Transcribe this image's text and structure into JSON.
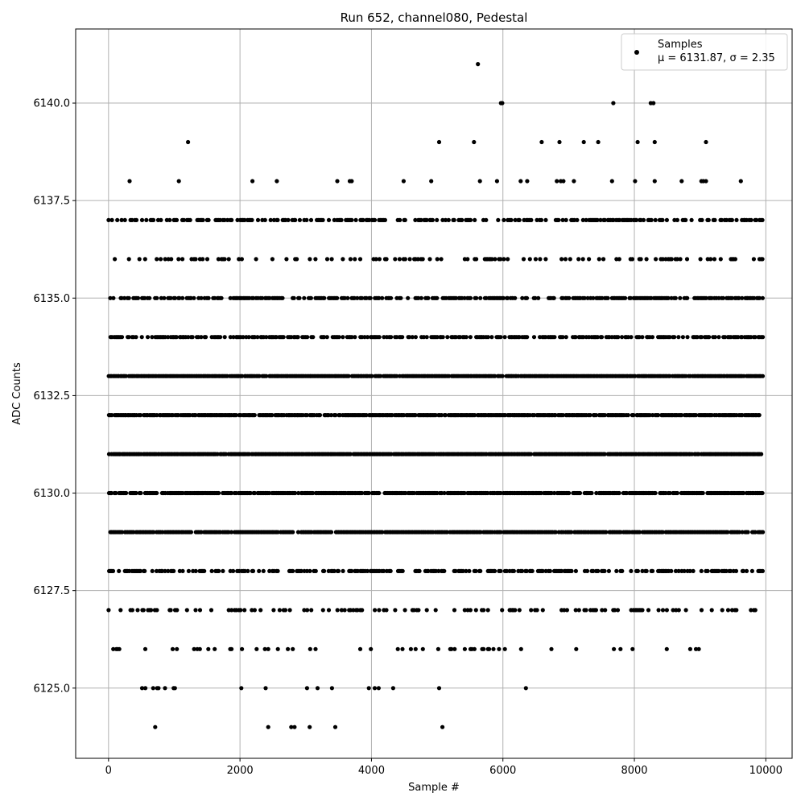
{
  "chart_data": {
    "type": "scatter",
    "title": "Run 652, channel080, Pedestal",
    "xlabel": "Sample #",
    "ylabel": "ADC Counts",
    "xlim": [
      -500,
      10400
    ],
    "ylim": [
      6123.2,
      6141.9
    ],
    "xticks": [
      0,
      2000,
      4000,
      6000,
      8000,
      10000
    ],
    "yticks": [
      6125.0,
      6127.5,
      6130.0,
      6132.5,
      6135.0,
      6137.5,
      6140.0
    ],
    "xtick_labels": [
      "0",
      "2000",
      "4000",
      "6000",
      "8000",
      "10000"
    ],
    "ytick_labels": [
      "6125.0",
      "6127.5",
      "6130.0",
      "6132.5",
      "6135.0",
      "6137.5",
      "6140.0"
    ],
    "grid": true,
    "legend": {
      "placement": "top-right",
      "series_label": "Samples",
      "stats_label": "μ = 6131.87, σ = 2.35"
    },
    "color": "#000000",
    "series": [
      {
        "name": "Samples",
        "points": [
          [
            5620,
            6141
          ],
          [
            5970,
            6140
          ],
          [
            5990,
            6140
          ],
          [
            7680,
            6140
          ],
          [
            8250,
            6140
          ],
          [
            8290,
            6140
          ],
          [
            1210,
            6139
          ],
          [
            5030,
            6139
          ],
          [
            5560,
            6139
          ],
          [
            6590,
            6139
          ],
          [
            6860,
            6139
          ],
          [
            7230,
            6139
          ],
          [
            7450,
            6139
          ],
          [
            8050,
            6139
          ],
          [
            8310,
            6139
          ],
          [
            9090,
            6139
          ],
          [
            320,
            6138
          ],
          [
            1070,
            6138
          ],
          [
            2190,
            6138
          ],
          [
            2560,
            6138
          ],
          [
            3480,
            6138
          ],
          [
            3670,
            6138
          ],
          [
            3700,
            6138
          ],
          [
            4490,
            6138
          ],
          [
            4910,
            6138
          ],
          [
            5650,
            6138
          ],
          [
            5910,
            6138
          ],
          [
            6270,
            6138
          ],
          [
            6370,
            6138
          ],
          [
            6820,
            6138
          ],
          [
            6880,
            6138
          ],
          [
            6920,
            6138
          ],
          [
            7080,
            6138
          ],
          [
            7660,
            6138
          ],
          [
            8010,
            6138
          ],
          [
            8310,
            6138
          ],
          [
            8720,
            6138
          ],
          [
            9020,
            6138
          ],
          [
            9050,
            6138
          ],
          [
            9090,
            6138
          ],
          [
            9620,
            6138
          ],
          [
            510,
            6125
          ],
          [
            560,
            6125
          ],
          [
            680,
            6125
          ],
          [
            740,
            6125
          ],
          [
            760,
            6125
          ],
          [
            860,
            6125
          ],
          [
            990,
            6125
          ],
          [
            1010,
            6125
          ],
          [
            2020,
            6125
          ],
          [
            2390,
            6125
          ],
          [
            3020,
            6125
          ],
          [
            3180,
            6125
          ],
          [
            3400,
            6125
          ],
          [
            3960,
            6125
          ],
          [
            4050,
            6125
          ],
          [
            4110,
            6125
          ],
          [
            4330,
            6125
          ],
          [
            5030,
            6125
          ],
          [
            6350,
            6125
          ],
          [
            710,
            6124
          ],
          [
            2430,
            6124
          ],
          [
            2780,
            6124
          ],
          [
            2830,
            6124
          ],
          [
            3060,
            6124
          ],
          [
            3450,
            6124
          ],
          [
            5080,
            6124
          ]
        ],
        "dense_levels": [
          {
            "y": 6137,
            "density": 0.45
          },
          {
            "y": 6136,
            "density": 0.25
          },
          {
            "y": 6135,
            "density": 0.65
          },
          {
            "y": 6134,
            "density": 0.6
          },
          {
            "y": 6133,
            "density": 0.95
          },
          {
            "y": 6132,
            "density": 0.9
          },
          {
            "y": 6131,
            "density": 0.97
          },
          {
            "y": 6130,
            "density": 0.85
          },
          {
            "y": 6129,
            "density": 0.9
          },
          {
            "y": 6128,
            "density": 0.5
          },
          {
            "y": 6127,
            "density": 0.25
          },
          {
            "y": 6126,
            "density": 0.12
          }
        ],
        "x_range": [
          0,
          9960
        ]
      }
    ]
  }
}
